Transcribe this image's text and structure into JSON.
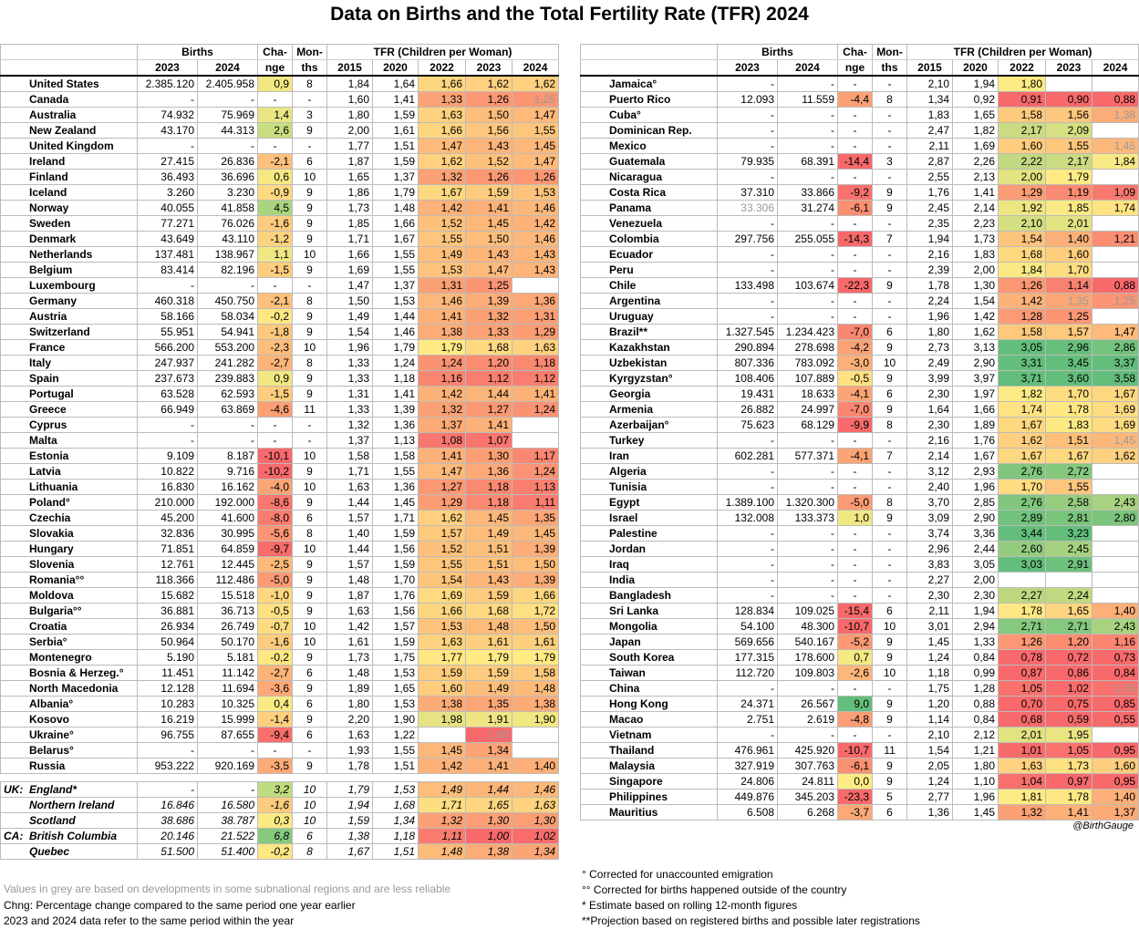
{
  "title": "Data on Births and the Total Fertility Rate (TFR) 2024",
  "credit": "@BirthGauge",
  "headers": {
    "births": "Births",
    "change": "Cha-",
    "change2": "nge",
    "months": "Mon-",
    "months2": "ths",
    "tfr": "TFR (Children per Woman)",
    "y2023": "2023",
    "y2024": "2024",
    "t2015": "2015",
    "t2020": "2020",
    "t2022": "2022",
    "t2023": "2023",
    "t2024": "2024"
  },
  "notes_left": [
    "Values in grey are based on developments in some subnational regions and are less reliable",
    "Chng: Percentage change compared to the same period one year earlier",
    "2023 and 2024 data refer to the same period within the year"
  ],
  "notes_right": [
    "° Corrected for unaccounted emigration",
    "°° Corrected for births happened outside of the country",
    "* Estimate based on rolling 12-month figures",
    "**Projection based on registered births and possible later registrations"
  ],
  "chart_data": {
    "type": "table",
    "columns": [
      "Country",
      "Births 2023",
      "Births 2024",
      "Change",
      "Months",
      "TFR 2015",
      "TFR 2020",
      "TFR 2022",
      "TFR 2023",
      "TFR 2024"
    ],
    "left": [
      [
        "United States",
        "2.385.120",
        "2.405.958",
        "0,9",
        "8",
        "1,84",
        "1,64",
        "1,66",
        "1,62",
        "1,62"
      ],
      [
        "Canada",
        "-",
        "-",
        "-",
        "-",
        "1,60",
        "1,41",
        "1,33",
        "1,26",
        "1,25"
      ],
      [
        "Australia",
        "74.932",
        "75.969",
        "1,4",
        "3",
        "1,80",
        "1,59",
        "1,63",
        "1,50",
        "1,47"
      ],
      [
        "New Zealand",
        "43.170",
        "44.313",
        "2,6",
        "9",
        "2,00",
        "1,61",
        "1,66",
        "1,56",
        "1,55"
      ],
      [
        "United Kingdom",
        "-",
        "-",
        "-",
        "-",
        "1,77",
        "1,51",
        "1,47",
        "1,43",
        "1,45"
      ],
      [
        "Ireland",
        "27.415",
        "26.836",
        "-2,1",
        "6",
        "1,87",
        "1,59",
        "1,62",
        "1,52",
        "1,47"
      ],
      [
        "Finland",
        "36.493",
        "36.696",
        "0,6",
        "10",
        "1,65",
        "1,37",
        "1,32",
        "1,26",
        "1,26"
      ],
      [
        "Iceland",
        "3.260",
        "3.230",
        "-0,9",
        "9",
        "1,86",
        "1,79",
        "1,67",
        "1,59",
        "1,53"
      ],
      [
        "Norway",
        "40.055",
        "41.858",
        "4,5",
        "9",
        "1,73",
        "1,48",
        "1,42",
        "1,41",
        "1,46"
      ],
      [
        "Sweden",
        "77.271",
        "76.026",
        "-1,6",
        "9",
        "1,85",
        "1,66",
        "1,52",
        "1,45",
        "1,42"
      ],
      [
        "Denmark",
        "43.649",
        "43.110",
        "-1,2",
        "9",
        "1,71",
        "1,67",
        "1,55",
        "1,50",
        "1,46"
      ],
      [
        "Netherlands",
        "137.481",
        "138.967",
        "1,1",
        "10",
        "1,66",
        "1,55",
        "1,49",
        "1,43",
        "1,43"
      ],
      [
        "Belgium",
        "83.414",
        "82.196",
        "-1,5",
        "9",
        "1,69",
        "1,55",
        "1,53",
        "1,47",
        "1,43"
      ],
      [
        "Luxembourg",
        "-",
        "-",
        "-",
        "-",
        "1,47",
        "1,37",
        "1,31",
        "1,25",
        ""
      ],
      [
        "Germany",
        "460.318",
        "450.750",
        "-2,1",
        "8",
        "1,50",
        "1,53",
        "1,46",
        "1,39",
        "1,36"
      ],
      [
        "Austria",
        "58.166",
        "58.034",
        "-0,2",
        "9",
        "1,49",
        "1,44",
        "1,41",
        "1,32",
        "1,31"
      ],
      [
        "Switzerland",
        "55.951",
        "54.941",
        "-1,8",
        "9",
        "1,54",
        "1,46",
        "1,38",
        "1,33",
        "1,29"
      ],
      [
        "France",
        "566.200",
        "553.200",
        "-2,3",
        "10",
        "1,96",
        "1,79",
        "1,79",
        "1,68",
        "1,63"
      ],
      [
        "Italy",
        "247.937",
        "241.282",
        "-2,7",
        "8",
        "1,33",
        "1,24",
        "1,24",
        "1,20",
        "1,18"
      ],
      [
        "Spain",
        "237.673",
        "239.883",
        "0,9",
        "9",
        "1,33",
        "1,18",
        "1,16",
        "1,12",
        "1,12"
      ],
      [
        "Portugal",
        "63.528",
        "62.593",
        "-1,5",
        "9",
        "1,31",
        "1,41",
        "1,42",
        "1,44",
        "1,41"
      ],
      [
        "Greece",
        "66.949",
        "63.869",
        "-4,6",
        "11",
        "1,33",
        "1,39",
        "1,32",
        "1,27",
        "1,24"
      ],
      [
        "Cyprus",
        "-",
        "-",
        "-",
        "-",
        "1,32",
        "1,36",
        "1,37",
        "1,41",
        ""
      ],
      [
        "Malta",
        "-",
        "-",
        "-",
        "-",
        "1,37",
        "1,13",
        "1,08",
        "1,07",
        ""
      ],
      [
        "Estonia",
        "9.109",
        "8.187",
        "-10,1",
        "10",
        "1,58",
        "1,58",
        "1,41",
        "1,30",
        "1,17"
      ],
      [
        "Latvia",
        "10.822",
        "9.716",
        "-10,2",
        "9",
        "1,71",
        "1,55",
        "1,47",
        "1,36",
        "1,24"
      ],
      [
        "Lithuania",
        "16.830",
        "16.162",
        "-4,0",
        "10",
        "1,63",
        "1,36",
        "1,27",
        "1,18",
        "1,13"
      ],
      [
        "Poland°",
        "210.000",
        "192.000",
        "-8,6",
        "9",
        "1,44",
        "1,45",
        "1,29",
        "1,18",
        "1,11"
      ],
      [
        "Czechia",
        "45.200",
        "41.600",
        "-8,0",
        "6",
        "1,57",
        "1,71",
        "1,62",
        "1,45",
        "1,35"
      ],
      [
        "Slovakia",
        "32.836",
        "30.995",
        "-5,6",
        "8",
        "1,40",
        "1,59",
        "1,57",
        "1,49",
        "1,45"
      ],
      [
        "Hungary",
        "71.851",
        "64.859",
        "-9,7",
        "10",
        "1,44",
        "1,56",
        "1,52",
        "1,51",
        "1,39"
      ],
      [
        "Slovenia",
        "12.761",
        "12.445",
        "-2,5",
        "9",
        "1,57",
        "1,59",
        "1,55",
        "1,51",
        "1,50"
      ],
      [
        "Romania°°",
        "118.366",
        "112.486",
        "-5,0",
        "9",
        "1,48",
        "1,70",
        "1,54",
        "1,43",
        "1,39"
      ],
      [
        "Moldova",
        "15.682",
        "15.518",
        "-1,0",
        "9",
        "1,87",
        "1,76",
        "1,69",
        "1,59",
        "1,66"
      ],
      [
        "Bulgaria°°",
        "36.881",
        "36.713",
        "-0,5",
        "9",
        "1,63",
        "1,56",
        "1,66",
        "1,68",
        "1,72"
      ],
      [
        "Croatia",
        "26.934",
        "26.749",
        "-0,7",
        "10",
        "1,42",
        "1,57",
        "1,53",
        "1,48",
        "1,50"
      ],
      [
        "Serbia°",
        "50.964",
        "50.170",
        "-1,6",
        "10",
        "1,61",
        "1,59",
        "1,63",
        "1,61",
        "1,61"
      ],
      [
        "Montenegro",
        "5.190",
        "5.181",
        "-0,2",
        "9",
        "1,73",
        "1,75",
        "1,77",
        "1,79",
        "1,79"
      ],
      [
        "Bosnia & Herzeg.°",
        "11.451",
        "11.142",
        "-2,7",
        "6",
        "1,48",
        "1,53",
        "1,59",
        "1,59",
        "1,58"
      ],
      [
        "North Macedonia",
        "12.128",
        "11.694",
        "-3,6",
        "9",
        "1,89",
        "1,65",
        "1,60",
        "1,49",
        "1,48"
      ],
      [
        "Albania°",
        "10.283",
        "10.325",
        "0,4",
        "6",
        "1,80",
        "1,53",
        "1,38",
        "1,35",
        "1,38"
      ],
      [
        "Kosovo",
        "16.219",
        "15.999",
        "-1,4",
        "9",
        "2,20",
        "1,90",
        "1,98",
        "1,91",
        "1,90"
      ],
      [
        "Ukraine°",
        "96.755",
        "87.655",
        "-9,4",
        "6",
        "1,63",
        "1,22",
        "",
        "1,00",
        ""
      ],
      [
        "Belarus°",
        "-",
        "-",
        "-",
        "-",
        "1,93",
        "1,55",
        "1,45",
        "1,34",
        ""
      ],
      [
        "Russia",
        "953.222",
        "920.169",
        "-3,5",
        "9",
        "1,78",
        "1,51",
        "1,42",
        "1,41",
        "1,40"
      ]
    ],
    "subnational": [
      [
        "UK:",
        "England*",
        "-",
        "-",
        "3,2",
        "10",
        "1,79",
        "1,53",
        "1,49",
        "1,44",
        "1,46"
      ],
      [
        "",
        "Northern Ireland",
        "16.846",
        "16.580",
        "-1,6",
        "10",
        "1,94",
        "1,68",
        "1,71",
        "1,65",
        "1,63"
      ],
      [
        "",
        "Scotland",
        "38.686",
        "38.787",
        "0,3",
        "10",
        "1,59",
        "1,34",
        "1,32",
        "1,30",
        "1,30"
      ],
      [
        "CA:",
        "British Columbia",
        "20.146",
        "21.522",
        "6,8",
        "6",
        "1,38",
        "1,18",
        "1,11",
        "1,00",
        "1,02"
      ],
      [
        "",
        "Quebec",
        "51.500",
        "51.400",
        "-0,2",
        "8",
        "1,67",
        "1,51",
        "1,48",
        "1,38",
        "1,34"
      ]
    ],
    "right": [
      [
        "Jamaica°",
        "-",
        "-",
        "-",
        "-",
        "2,10",
        "1,94",
        "1,80",
        "",
        ""
      ],
      [
        "Puerto Rico",
        "12.093",
        "11.559",
        "-4,4",
        "8",
        "1,34",
        "0,92",
        "0,91",
        "0,90",
        "0,88"
      ],
      [
        "Cuba°",
        "-",
        "-",
        "-",
        "-",
        "1,83",
        "1,65",
        "1,58",
        "1,56",
        "1,38"
      ],
      [
        "Dominican Rep.",
        "-",
        "-",
        "-",
        "-",
        "2,47",
        "1,82",
        "2,17",
        "2,09",
        ""
      ],
      [
        "Mexico",
        "-",
        "-",
        "-",
        "-",
        "2,11",
        "1,69",
        "1,60",
        "1,55",
        "1,45"
      ],
      [
        "Guatemala",
        "79.935",
        "68.391",
        "-14,4",
        "3",
        "2,87",
        "2,26",
        "2,22",
        "2,17",
        "1,84"
      ],
      [
        "Nicaragua",
        "-",
        "-",
        "-",
        "-",
        "2,55",
        "2,13",
        "2,00",
        "1,79",
        ""
      ],
      [
        "Costa Rica",
        "37.310",
        "33.866",
        "-9,2",
        "9",
        "1,76",
        "1,41",
        "1,29",
        "1,19",
        "1,09"
      ],
      [
        "Panama",
        "33.306",
        "31.274",
        "-6,1",
        "9",
        "2,45",
        "2,14",
        "1,92",
        "1,85",
        "1,74"
      ],
      [
        "Venezuela",
        "-",
        "-",
        "-",
        "-",
        "2,35",
        "2,23",
        "2,10",
        "2,01",
        ""
      ],
      [
        "Colombia",
        "297.756",
        "255.055",
        "-14,3",
        "7",
        "1,94",
        "1,73",
        "1,54",
        "1,40",
        "1,21"
      ],
      [
        "Ecuador",
        "-",
        "-",
        "-",
        "-",
        "2,16",
        "1,83",
        "1,68",
        "1,60",
        ""
      ],
      [
        "Peru",
        "-",
        "-",
        "-",
        "-",
        "2,39",
        "2,00",
        "1,84",
        "1,70",
        ""
      ],
      [
        "Chile",
        "133.498",
        "103.674",
        "-22,3",
        "9",
        "1,78",
        "1,30",
        "1,26",
        "1,14",
        "0,88"
      ],
      [
        "Argentina",
        "-",
        "-",
        "-",
        "-",
        "2,24",
        "1,54",
        "1,42",
        "1,35",
        "1,25"
      ],
      [
        "Uruguay",
        "-",
        "-",
        "-",
        "-",
        "1,96",
        "1,42",
        "1,28",
        "1,25",
        ""
      ],
      [
        "Brazil**",
        "1.327.545",
        "1.234.423",
        "-7,0",
        "6",
        "1,80",
        "1,62",
        "1,58",
        "1,57",
        "1,47"
      ],
      [
        "Kazakhstan",
        "290.894",
        "278.698",
        "-4,2",
        "9",
        "2,73",
        "3,13",
        "3,05",
        "2,96",
        "2,86"
      ],
      [
        "Uzbekistan",
        "807.336",
        "783.092",
        "-3,0",
        "10",
        "2,49",
        "2,90",
        "3,31",
        "3,45",
        "3,37"
      ],
      [
        "Kyrgyzstan°",
        "108.406",
        "107.889",
        "-0,5",
        "9",
        "3,99",
        "3,97",
        "3,71",
        "3,60",
        "3,58"
      ],
      [
        "Georgia",
        "19.431",
        "18.633",
        "-4,1",
        "6",
        "2,30",
        "1,97",
        "1,82",
        "1,70",
        "1,67"
      ],
      [
        "Armenia",
        "26.882",
        "24.997",
        "-7,0",
        "9",
        "1,64",
        "1,66",
        "1,74",
        "1,78",
        "1,69"
      ],
      [
        "Azerbaijan°",
        "75.623",
        "68.129",
        "-9,9",
        "8",
        "2,30",
        "1,89",
        "1,67",
        "1,83",
        "1,69"
      ],
      [
        "Turkey",
        "-",
        "-",
        "-",
        "-",
        "2,16",
        "1,76",
        "1,62",
        "1,51",
        "1,45"
      ],
      [
        "Iran",
        "602.281",
        "577.371",
        "-4,1",
        "7",
        "2,14",
        "1,67",
        "1,67",
        "1,67",
        "1,62"
      ],
      [
        "Algeria",
        "-",
        "-",
        "-",
        "-",
        "3,12",
        "2,93",
        "2,76",
        "2,72",
        ""
      ],
      [
        "Tunisia",
        "-",
        "-",
        "-",
        "-",
        "2,40",
        "1,96",
        "1,70",
        "1,55",
        ""
      ],
      [
        "Egypt",
        "1.389.100",
        "1.320.300",
        "-5,0",
        "8",
        "3,70",
        "2,85",
        "2,76",
        "2,58",
        "2,43"
      ],
      [
        "Israel",
        "132.008",
        "133.373",
        "1,0",
        "9",
        "3,09",
        "2,90",
        "2,89",
        "2,81",
        "2,80"
      ],
      [
        "Palestine",
        "-",
        "-",
        "-",
        "-",
        "3,74",
        "3,36",
        "3,44",
        "3,23",
        ""
      ],
      [
        "Jordan",
        "-",
        "-",
        "-",
        "-",
        "2,96",
        "2,44",
        "2,60",
        "2,45",
        ""
      ],
      [
        "Iraq",
        "-",
        "-",
        "-",
        "-",
        "3,83",
        "3,05",
        "3,03",
        "2,91",
        ""
      ],
      [
        "India",
        "-",
        "-",
        "-",
        "-",
        "2,27",
        "2,00",
        "",
        "",
        ""
      ],
      [
        "Bangladesh",
        "-",
        "-",
        "-",
        "-",
        "2,30",
        "2,30",
        "2,27",
        "2,24",
        ""
      ],
      [
        "Sri Lanka",
        "128.834",
        "109.025",
        "-15,4",
        "6",
        "2,11",
        "1,94",
        "1,78",
        "1,65",
        "1,40"
      ],
      [
        "Mongolia",
        "54.100",
        "48.300",
        "-10,7",
        "10",
        "3,01",
        "2,94",
        "2,71",
        "2,71",
        "2,43"
      ],
      [
        "Japan",
        "569.656",
        "540.167",
        "-5,2",
        "9",
        "1,45",
        "1,33",
        "1,26",
        "1,20",
        "1,16"
      ],
      [
        "South Korea",
        "177.315",
        "178.600",
        "0,7",
        "9",
        "1,24",
        "0,84",
        "0,78",
        "0,72",
        "0,73"
      ],
      [
        "Taiwan",
        "112.720",
        "109.803",
        "-2,6",
        "10",
        "1,18",
        "0,99",
        "0,87",
        "0,86",
        "0,84"
      ],
      [
        "China",
        "-",
        "-",
        "-",
        "-",
        "1,75",
        "1,28",
        "1,05",
        "1,02",
        "1,05"
      ],
      [
        "Hong Kong",
        "24.371",
        "26.567",
        "9,0",
        "9",
        "1,20",
        "0,88",
        "0,70",
        "0,75",
        "0,85"
      ],
      [
        "Macao",
        "2.751",
        "2.619",
        "-4,8",
        "9",
        "1,14",
        "0,84",
        "0,68",
        "0,59",
        "0,55"
      ],
      [
        "Vietnam",
        "-",
        "-",
        "-",
        "-",
        "2,10",
        "2,12",
        "2,01",
        "1,95",
        ""
      ],
      [
        "Thailand",
        "476.961",
        "425.920",
        "-10,7",
        "11",
        "1,54",
        "1,21",
        "1,01",
        "1,05",
        "0,95"
      ],
      [
        "Malaysia",
        "327.919",
        "307.763",
        "-6,1",
        "9",
        "2,05",
        "1,80",
        "1,63",
        "1,73",
        "1,60"
      ],
      [
        "Singapore",
        "24.806",
        "24.811",
        "0,0",
        "9",
        "1,24",
        "1,10",
        "1,04",
        "0,97",
        "0,95"
      ],
      [
        "Philippines",
        "449.876",
        "345.203",
        "-23,3",
        "5",
        "2,77",
        "1,96",
        "1,81",
        "1,78",
        "1,40"
      ],
      [
        "Mauritius",
        "6.508",
        "6.268",
        "-3,7",
        "6",
        "1,36",
        "1,45",
        "1,32",
        "1,41",
        "1,37"
      ]
    ],
    "grey_cells": [
      [
        "Canada",
        9
      ],
      [
        "Cuba°",
        9
      ],
      [
        "Mexico",
        9
      ],
      [
        "Panama",
        1
      ],
      [
        "Argentina",
        8
      ],
      [
        "Argentina",
        9
      ],
      [
        "Turkey",
        9
      ],
      [
        "China",
        9
      ],
      [
        "Ukraine°",
        8
      ]
    ]
  }
}
